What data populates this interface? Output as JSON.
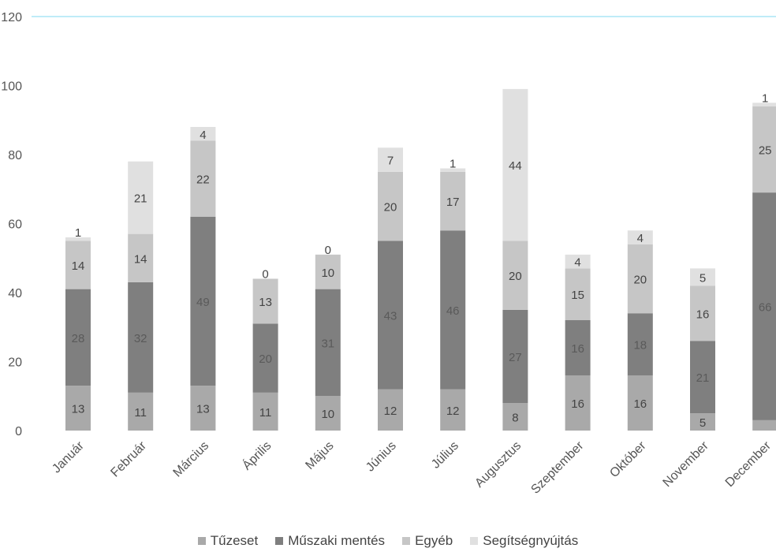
{
  "chart_data": {
    "type": "bar",
    "stacked": true,
    "categories": [
      "Január",
      "Február",
      "Március",
      "Április",
      "Május",
      "Június",
      "Július",
      "Augusztus",
      "Szeptember",
      "Október",
      "November",
      "December"
    ],
    "series": [
      {
        "name": "Tűzeset",
        "color": "#a9a9a9",
        "values": [
          13,
          11,
          13,
          11,
          10,
          12,
          12,
          8,
          16,
          16,
          5,
          3
        ]
      },
      {
        "name": "Műszaki mentés",
        "color": "#7f7f7f",
        "values": [
          28,
          32,
          49,
          20,
          31,
          43,
          46,
          27,
          16,
          18,
          21,
          66
        ]
      },
      {
        "name": "Egyéb",
        "color": "#c6c6c6",
        "values": [
          14,
          14,
          22,
          13,
          10,
          20,
          17,
          20,
          15,
          20,
          16,
          25
        ]
      },
      {
        "name": "Segítségnyújtás",
        "color": "#e0e0e0",
        "values": [
          1,
          21,
          4,
          0,
          0,
          7,
          1,
          44,
          4,
          4,
          5,
          1
        ]
      }
    ],
    "y_ticks": [
      "0",
      "20",
      "40",
      "60",
      "80",
      "100",
      "120"
    ],
    "ylim": [
      0,
      120
    ],
    "grid": false,
    "legend_position": "bottom",
    "max_line_color": "#7fd8f0"
  }
}
